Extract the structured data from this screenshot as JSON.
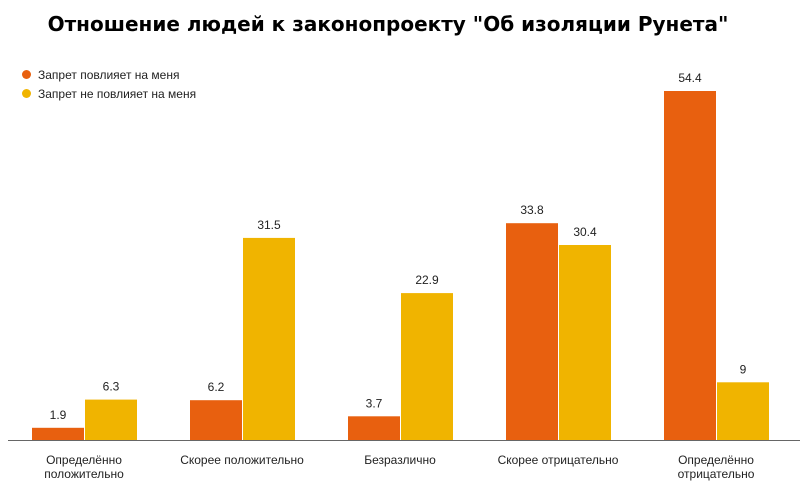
{
  "chart_data": {
    "type": "bar",
    "title": "Отношение людей к законопроекту \"Об изоляции Рунета\"",
    "xlabel": "",
    "ylabel": "",
    "ylim": [
      0,
      56
    ],
    "grid": false,
    "legend_position": "top-left",
    "categories": [
      [
        "Определённо",
        "положительно"
      ],
      [
        "Скорее положительно"
      ],
      [
        "Безразлично"
      ],
      [
        "Скорее отрицательно"
      ],
      [
        "Определённо",
        "отрицательно"
      ]
    ],
    "series": [
      {
        "name": "Запрет повлияет на меня",
        "color": "#e8600f",
        "values": [
          1.9,
          6.2,
          3.7,
          33.8,
          54.4
        ]
      },
      {
        "name": "Запрет не повлияет на меня",
        "color": "#f0b400",
        "values": [
          6.3,
          31.5,
          22.9,
          30.4,
          9
        ]
      }
    ],
    "axis_color": "#666666"
  }
}
